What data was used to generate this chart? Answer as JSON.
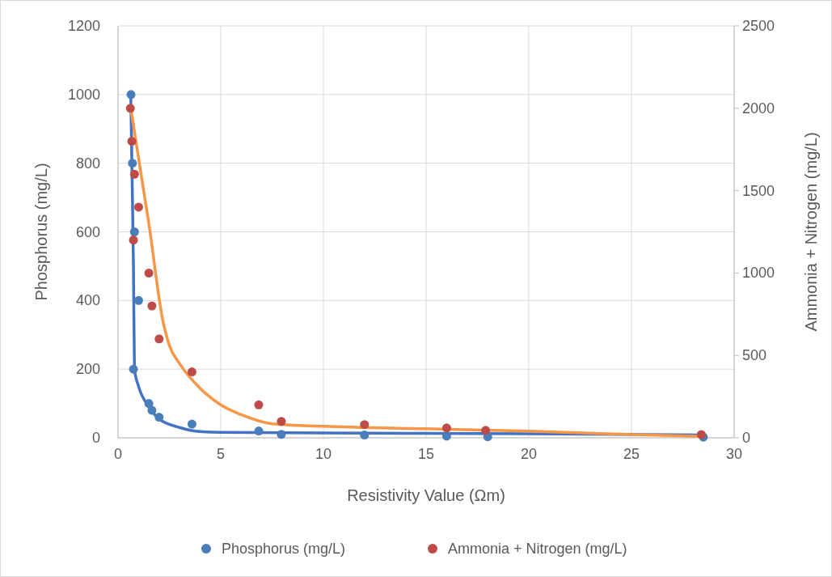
{
  "chart_data": {
    "type": "scatter",
    "xlabel": "Resistivity Value  (Ωm)",
    "ylabel": "Phosphorus (mg/L)",
    "y2label": "Ammonia + Nitrogen (mg/L)",
    "xlim": [
      0,
      30
    ],
    "xticks": [
      0,
      5,
      10,
      15,
      20,
      25,
      30
    ],
    "ylim": [
      0,
      1200
    ],
    "yticks": [
      0,
      200,
      400,
      600,
      800,
      1000,
      1200
    ],
    "y2lim": [
      0,
      2500
    ],
    "y2ticks": [
      0,
      500,
      1000,
      1500,
      2000,
      2500
    ],
    "grid": true,
    "legend": "bottom",
    "marker": "circle",
    "series": [
      {
        "type": "line",
        "marker": "none",
        "color": "#4472c4",
        "x": [
          0.62,
          0.7,
          0.75,
          0.8,
          1,
          1.5,
          2,
          3,
          4,
          5,
          10,
          20,
          28.5
        ],
        "values": [
          1000,
          700,
          500,
          200,
          150,
          90,
          55,
          30,
          18,
          16,
          14,
          12,
          8
        ]
      },
      {
        "type": "line",
        "marker": "none",
        "color": "#f79646",
        "axis": "y2",
        "x": [
          0.62,
          1.5,
          2.2,
          2.5,
          3,
          4,
          5,
          6,
          7.5,
          10,
          15,
          20,
          25,
          28.5
        ],
        "values": [
          2000,
          1300,
          700,
          560,
          450,
          300,
          200,
          140,
          85,
          70,
          55,
          40,
          20,
          8
        ]
      },
      {
        "name": "Phosphorus (mg/L)",
        "color": "#4a7ebb",
        "x": [
          0.63,
          0.7,
          0.8,
          0.75,
          1,
          1.5,
          1.65,
          2,
          3.6,
          6.85,
          7.95,
          12,
          16,
          18,
          28.5
        ],
        "values": [
          1000,
          800,
          600,
          200,
          400,
          100,
          80,
          60,
          40,
          20,
          10,
          8,
          5,
          3,
          2
        ]
      },
      {
        "name": "Ammonia + Nitrogen (mg/L)",
        "color": "#be4b48",
        "axis": "y2",
        "x": [
          0.6,
          0.67,
          0.8,
          1,
          0.75,
          1.5,
          1.65,
          2,
          3.6,
          6.85,
          7.95,
          12,
          16,
          17.9,
          28.4
        ],
        "values": [
          2000,
          1800,
          1600,
          1400,
          1200,
          1000,
          800,
          600,
          400,
          200,
          100,
          80,
          60,
          45,
          20
        ]
      }
    ]
  }
}
